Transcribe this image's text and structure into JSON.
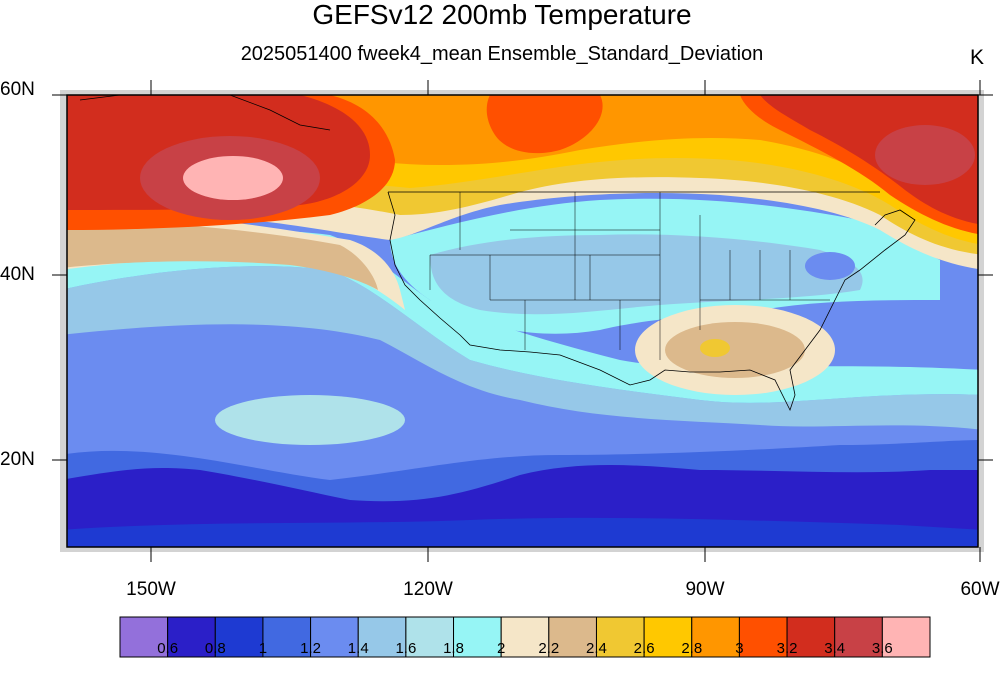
{
  "title": "GEFSv12 200mb Temperature",
  "subtitle": "2025051400 fweek4_mean Ensemble_Standard_Deviation",
  "units": "K",
  "lat_labels": [
    "60N",
    "40N",
    "20N"
  ],
  "lon_labels": [
    "150W",
    "120W",
    "90W",
    "60W"
  ],
  "colorbar": {
    "colors": [
      "#9370db",
      "#2b1fc8",
      "#1e3ad2",
      "#4169e1",
      "#6b8cf0",
      "#96c8e8",
      "#afe2ea",
      "#96f5f5",
      "#f5e6c8",
      "#dcb98c",
      "#f0c832",
      "#ffc800",
      "#ff9600",
      "#ff5000",
      "#d22d1e",
      "#c84146",
      "#ffb4b4"
    ],
    "labels": [
      "0.6",
      "0.8",
      "1",
      "1.2",
      "1.4",
      "1.6",
      "1.8",
      "2",
      "2.2",
      "2.4",
      "2.6",
      "2.8",
      "3",
      "3.2",
      "3.4",
      "3.6"
    ]
  },
  "map": {
    "projection": "cylindrical equidistant",
    "lon_range": [
      -160,
      -60
    ],
    "lat_range": [
      10,
      60
    ],
    "tick_lons": [
      -150,
      -120,
      -90,
      -60
    ],
    "tick_lats": [
      60,
      40,
      20
    ],
    "grid": false
  }
}
